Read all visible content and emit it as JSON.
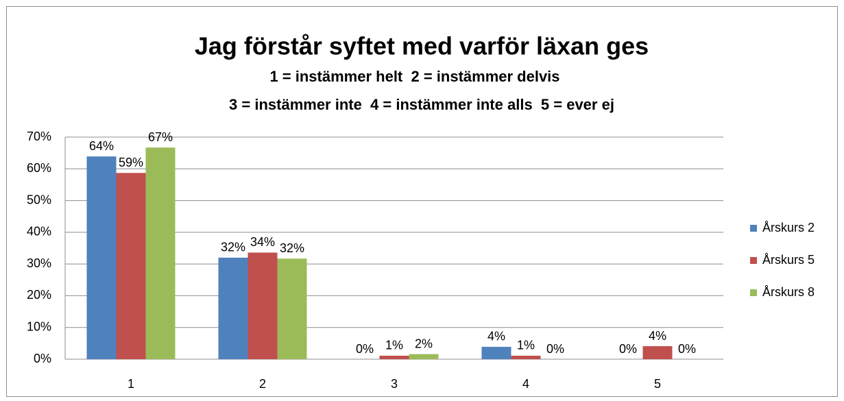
{
  "chart_data": {
    "type": "bar",
    "title": "Jag förstår syftet med varför läxan ges",
    "subtitle": [
      "1 = instämmer helt  2 = instämmer delvis",
      "3 = instämmer inte  4 = instämmer inte alls  5 = ever ej"
    ],
    "categories": [
      "1",
      "2",
      "3",
      "4",
      "5"
    ],
    "series": [
      {
        "name": "Årskurs 2",
        "color": "#4f81bd",
        "values": [
          63.9,
          32,
          0,
          3.9,
          0
        ],
        "value_labels": [
          "64%",
          "32%",
          "0%",
          "4%",
          "0%"
        ]
      },
      {
        "name": "Årskurs 5",
        "color": "#c0504d",
        "values": [
          58.7,
          33.6,
          1.1,
          1.1,
          4.1
        ],
        "value_labels": [
          "59%",
          "34%",
          "1%",
          "1%",
          "4%"
        ]
      },
      {
        "name": "Årskurs 8",
        "color": "#9bbb59",
        "values": [
          66.7,
          31.7,
          1.6,
          0,
          0
        ],
        "value_labels": [
          "67%",
          "32%",
          "2%",
          "0%",
          "0%"
        ]
      }
    ],
    "ylim": [
      0,
      70
    ],
    "yticks": [
      {
        "value": 0,
        "label": "0%"
      },
      {
        "value": 10,
        "label": "10%"
      },
      {
        "value": 20,
        "label": "20%"
      },
      {
        "value": 30,
        "label": "30%"
      },
      {
        "value": 40,
        "label": "40%"
      },
      {
        "value": 50,
        "label": "50%"
      },
      {
        "value": 60,
        "label": "60%"
      },
      {
        "value": 70,
        "label": "70%"
      }
    ],
    "grid": true,
    "legend": "right"
  }
}
